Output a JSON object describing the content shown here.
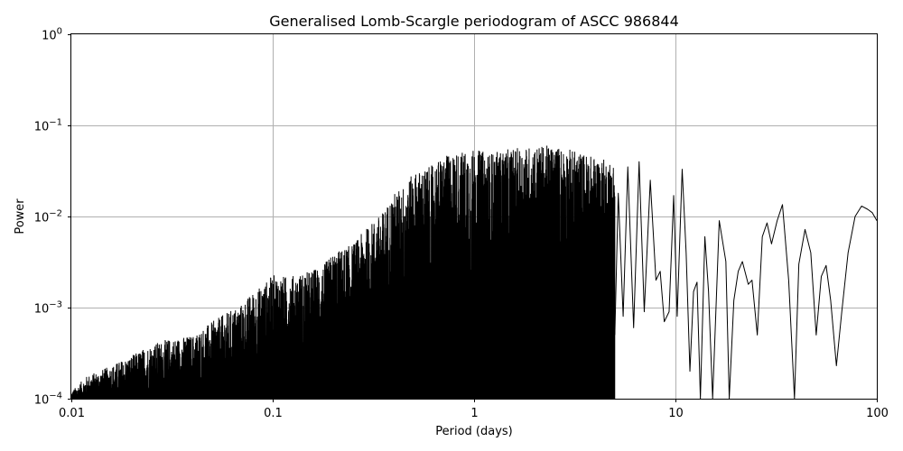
{
  "chart_data": {
    "type": "line",
    "title": "Generalised Lomb-Scargle periodogram of ASCC 986844",
    "xlabel": "Period (days)",
    "ylabel": "Power",
    "xscale": "log",
    "yscale": "log",
    "xlim": [
      0.01,
      100
    ],
    "ylim": [
      0.0001,
      1
    ],
    "grid": true,
    "x_ticks": [
      {
        "value": 0.01,
        "label": "0.01"
      },
      {
        "value": 0.1,
        "label": "0.1"
      },
      {
        "value": 1,
        "label": "1"
      },
      {
        "value": 10,
        "label": "10"
      },
      {
        "value": 100,
        "label": "100"
      }
    ],
    "y_ticks": [
      {
        "value": 0.0001,
        "base": "10",
        "exp": "−4"
      },
      {
        "value": 0.001,
        "base": "10",
        "exp": "−3"
      },
      {
        "value": 0.01,
        "base": "10",
        "exp": "−2"
      },
      {
        "value": 0.1,
        "base": "10",
        "exp": "−1"
      },
      {
        "value": 1,
        "base": "10",
        "exp": "0"
      }
    ],
    "series": [
      {
        "color": "#000000",
        "envelope_upper": [
          [
            0.01,
            0.00012
          ],
          [
            0.012,
            0.00018
          ],
          [
            0.015,
            0.00022
          ],
          [
            0.02,
            0.0003
          ],
          [
            0.025,
            0.0004
          ],
          [
            0.03,
            0.00045
          ],
          [
            0.04,
            0.0005
          ],
          [
            0.05,
            0.0007
          ],
          [
            0.06,
            0.0009
          ],
          [
            0.07,
            0.0011
          ],
          [
            0.08,
            0.0015
          ],
          [
            0.09,
            0.0018
          ],
          [
            0.1,
            0.0023
          ],
          [
            0.12,
            0.0022
          ],
          [
            0.15,
            0.0025
          ],
          [
            0.18,
            0.003
          ],
          [
            0.2,
            0.004
          ],
          [
            0.25,
            0.005
          ],
          [
            0.3,
            0.008
          ],
          [
            0.35,
            0.011
          ],
          [
            0.4,
            0.018
          ],
          [
            0.45,
            0.022
          ],
          [
            0.5,
            0.03
          ],
          [
            0.6,
            0.035
          ],
          [
            0.7,
            0.045
          ],
          [
            0.8,
            0.05
          ],
          [
            1.0,
            0.055
          ],
          [
            1.2,
            0.05
          ],
          [
            1.5,
            0.055
          ],
          [
            2.0,
            0.06
          ],
          [
            2.5,
            0.06
          ],
          [
            3.0,
            0.055
          ],
          [
            4.0,
            0.045
          ],
          [
            5.0,
            0.04
          ]
        ],
        "envelope_lower": [
          [
            0.01,
            0.0001
          ],
          [
            0.02,
            0.00012
          ],
          [
            0.05,
            0.00015
          ],
          [
            0.1,
            0.0002
          ],
          [
            0.2,
            0.00025
          ],
          [
            0.3,
            0.0003
          ],
          [
            0.5,
            0.0003
          ],
          [
            1.0,
            0.0003
          ],
          [
            2.0,
            0.0002
          ],
          [
            5.0,
            0.0002
          ]
        ],
        "long_period_curve": [
          [
            5.0,
            0.0005
          ],
          [
            5.2,
            0.018
          ],
          [
            5.5,
            0.0008
          ],
          [
            5.8,
            0.035
          ],
          [
            6.2,
            0.0006
          ],
          [
            6.6,
            0.04
          ],
          [
            7.0,
            0.0009
          ],
          [
            7.5,
            0.025
          ],
          [
            8.0,
            0.002
          ],
          [
            8.4,
            0.0025
          ],
          [
            8.8,
            0.0007
          ],
          [
            9.3,
            0.0009
          ],
          [
            9.8,
            0.017
          ],
          [
            10.2,
            0.0008
          ],
          [
            10.8,
            0.033
          ],
          [
            11.3,
            0.004
          ],
          [
            11.8,
            0.0002
          ],
          [
            12.3,
            0.0015
          ],
          [
            12.8,
            0.0019
          ],
          [
            13.3,
            0.0001
          ],
          [
            14.0,
            0.006
          ],
          [
            14.6,
            0.0015
          ],
          [
            15.3,
            0.0001
          ],
          [
            16.5,
            0.009
          ],
          [
            17.8,
            0.0032
          ],
          [
            18.5,
            0.0001
          ],
          [
            19.5,
            0.0012
          ],
          [
            20.5,
            0.0025
          ],
          [
            21.5,
            0.0032
          ],
          [
            23.0,
            0.0018
          ],
          [
            24.0,
            0.002
          ],
          [
            25.5,
            0.0005
          ],
          [
            27.0,
            0.006
          ],
          [
            28.5,
            0.0085
          ],
          [
            30.0,
            0.005
          ],
          [
            32.0,
            0.009
          ],
          [
            34.0,
            0.0135
          ],
          [
            36.5,
            0.002
          ],
          [
            39.0,
            0.0001
          ],
          [
            41.0,
            0.003
          ],
          [
            44.0,
            0.0072
          ],
          [
            47.0,
            0.004
          ],
          [
            50.0,
            0.0005
          ],
          [
            53.0,
            0.0022
          ],
          [
            56.0,
            0.0029
          ],
          [
            59.0,
            0.0012
          ],
          [
            63.0,
            0.00023
          ],
          [
            67.0,
            0.0009
          ],
          [
            72.0,
            0.004
          ],
          [
            78.0,
            0.01
          ],
          [
            84.0,
            0.013
          ],
          [
            90.0,
            0.012
          ],
          [
            95.0,
            0.011
          ],
          [
            100.0,
            0.009
          ]
        ]
      }
    ]
  }
}
